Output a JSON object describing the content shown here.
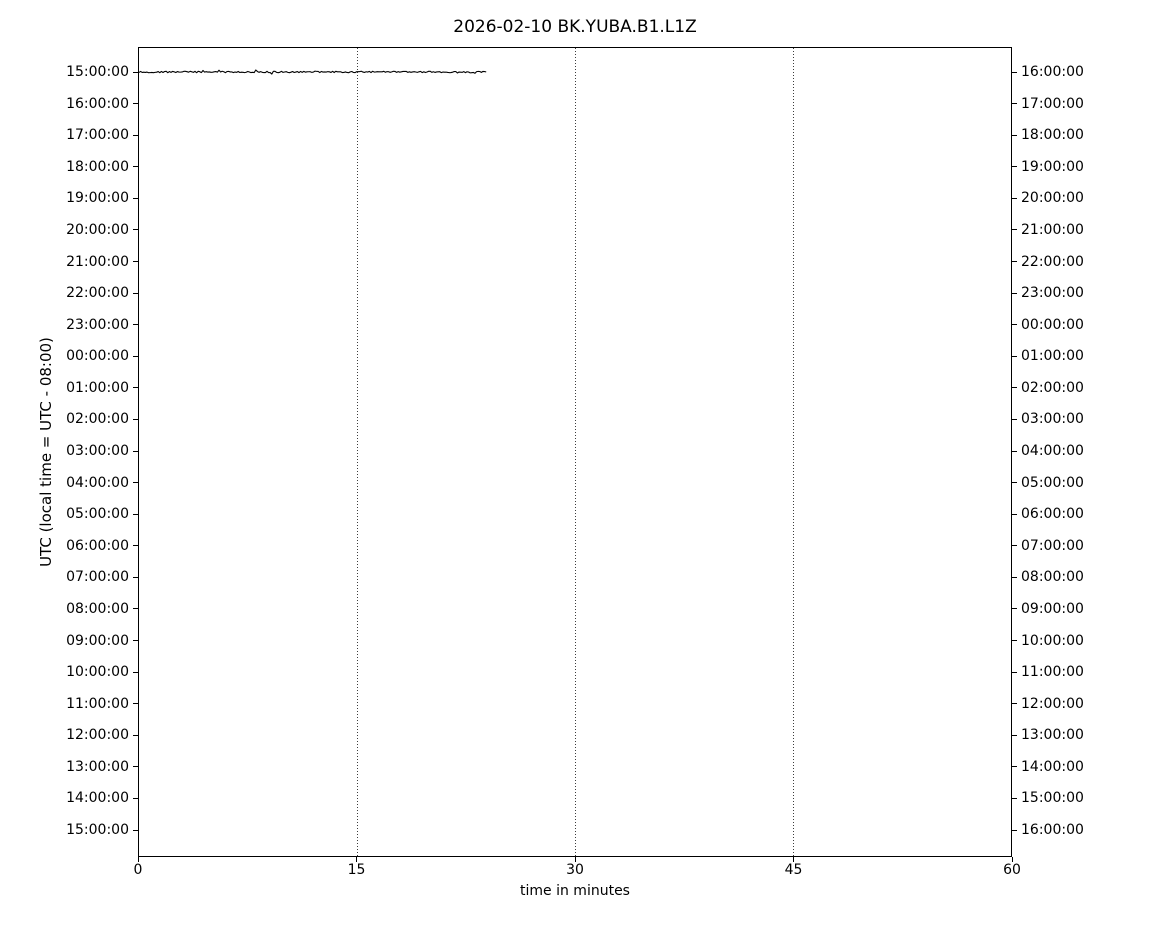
{
  "chart_data": {
    "type": "line",
    "subtype": "helicorder-dayplot",
    "title": "2026-02-10 BK.YUBA.B1.L1Z",
    "xlabel": "time in minutes",
    "ylabel": "UTC (local time = UTC - 08:00)",
    "xlim": [
      0,
      60
    ],
    "x_ticks": [
      0,
      15,
      30,
      45,
      60
    ],
    "x_tick_labels": [
      "0",
      "15",
      "30",
      "45",
      "60"
    ],
    "grid_minutes": [
      15,
      30,
      45
    ],
    "grid_style": "dotted",
    "num_rows": 25,
    "row_interval_minutes": 60,
    "left_tick_labels": [
      "15:00:00",
      "16:00:00",
      "17:00:00",
      "18:00:00",
      "19:00:00",
      "20:00:00",
      "21:00:00",
      "22:00:00",
      "23:00:00",
      "00:00:00",
      "01:00:00",
      "02:00:00",
      "03:00:00",
      "04:00:00",
      "05:00:00",
      "06:00:00",
      "07:00:00",
      "08:00:00",
      "09:00:00",
      "10:00:00",
      "11:00:00",
      "12:00:00",
      "13:00:00",
      "14:00:00",
      "15:00:00"
    ],
    "right_tick_labels": [
      "16:00:00",
      "17:00:00",
      "18:00:00",
      "19:00:00",
      "20:00:00",
      "21:00:00",
      "22:00:00",
      "23:00:00",
      "00:00:00",
      "01:00:00",
      "02:00:00",
      "03:00:00",
      "04:00:00",
      "05:00:00",
      "06:00:00",
      "07:00:00",
      "08:00:00",
      "09:00:00",
      "10:00:00",
      "11:00:00",
      "12:00:00",
      "13:00:00",
      "14:00:00",
      "15:00:00",
      "16:00:00"
    ],
    "series": [
      {
        "name": "BK.YUBA.B1.L1Z",
        "row": 0,
        "row_start_label": "15:00:00",
        "start_minute": 0,
        "end_minute": 24,
        "amplitude": "flat near-zero trace with minor noise"
      }
    ],
    "colors": {
      "trace": "#000000",
      "axis": "#000000",
      "grid": "#3c3c3c",
      "background": "#ffffff",
      "text": "#000000"
    },
    "legend": "none"
  }
}
